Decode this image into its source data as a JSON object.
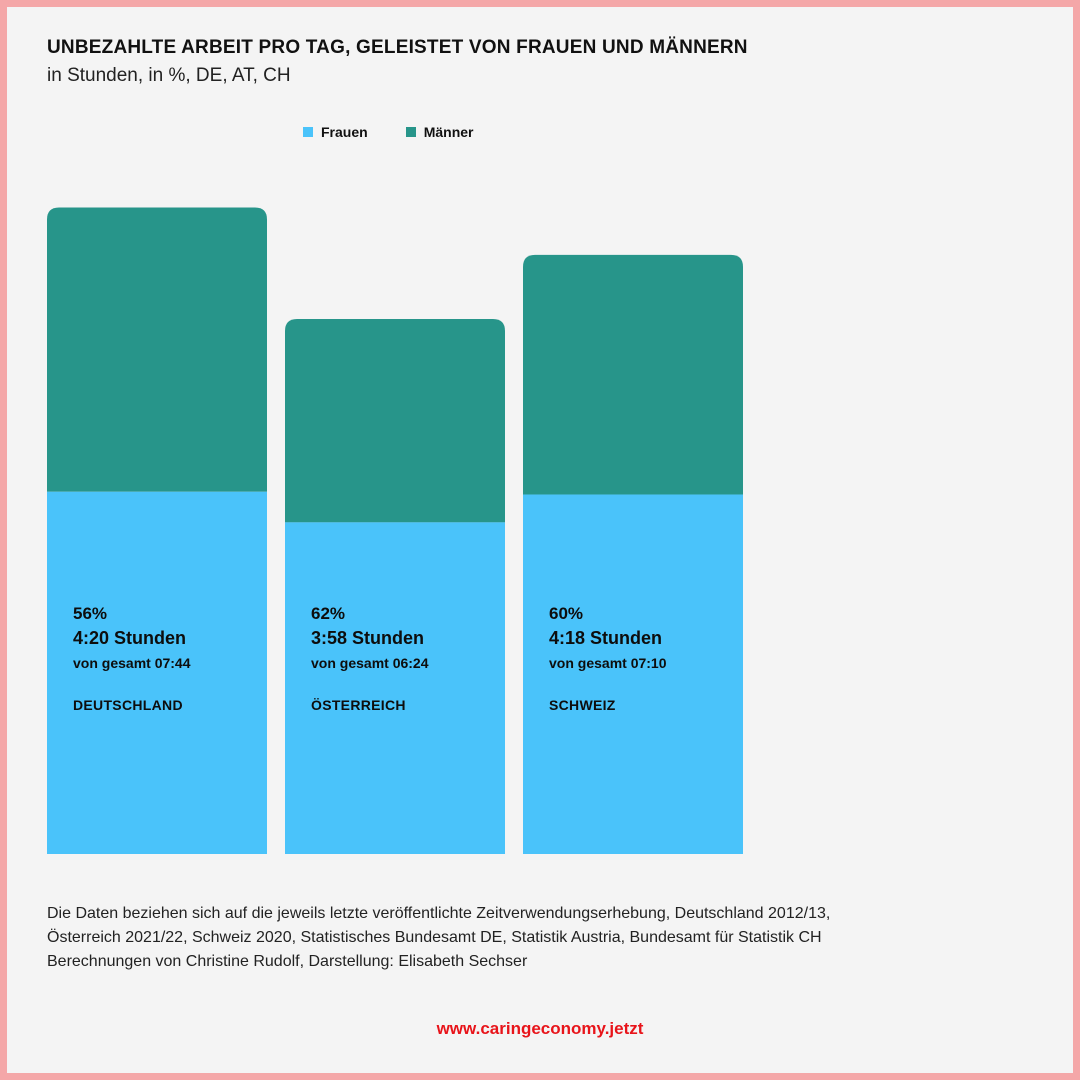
{
  "title": "UNBEZAHLTE ARBEIT PRO TAG, GELEISTET VON FRAUEN UND MÄNNERN",
  "subtitle": "in Stunden, in %, DE, AT, CH",
  "colors": {
    "frauen": "#4ac3fa",
    "maenner": "#27958a",
    "background": "#f4f4f4",
    "border": "#f4a7a8",
    "url": "#e8141a"
  },
  "legend": {
    "frauen": "Frauen",
    "maenner": "Männer"
  },
  "chart_data": {
    "type": "bar",
    "stacked": true,
    "categories": [
      "DEUTSCHLAND",
      "ÖSTERREICH",
      "SCHWEIZ"
    ],
    "total_hours": [
      7.733,
      6.4,
      7.167
    ],
    "series": [
      {
        "name": "Frauen",
        "values": [
          4.333,
          3.967,
          4.3
        ],
        "share_percent": [
          56,
          62,
          60
        ]
      },
      {
        "name": "Männer",
        "values": [
          3.4,
          2.433,
          2.867
        ]
      }
    ],
    "labels": [
      {
        "pct": "56%",
        "hours": "4:20 Stunden",
        "total": "von gesamt 07:44",
        "country": "DEUTSCHLAND"
      },
      {
        "pct": "62%",
        "hours": "3:58 Stunden",
        "total": "von gesamt 06:24",
        "country": "ÖSTERREICH"
      },
      {
        "pct": "60%",
        "hours": "4:18 Stunden",
        "total": "von gesamt 07:10",
        "country": "SCHWEIZ"
      }
    ],
    "grid": false,
    "legend_position": "top"
  },
  "note": [
    "Die Daten beziehen sich auf die jeweils letzte veröffentlichte Zeitverwendungserhebung, Deutschland 2012/13,",
    "Österreich 2021/22, Schweiz 2020, Statistisches Bundesamt DE, Statistik Austria, Bundesamt für Statistik CH",
    "Berechnungen von Christine Rudolf, Darstellung: Elisabeth Sechser"
  ],
  "url": "www.caringeconomy.jetzt"
}
